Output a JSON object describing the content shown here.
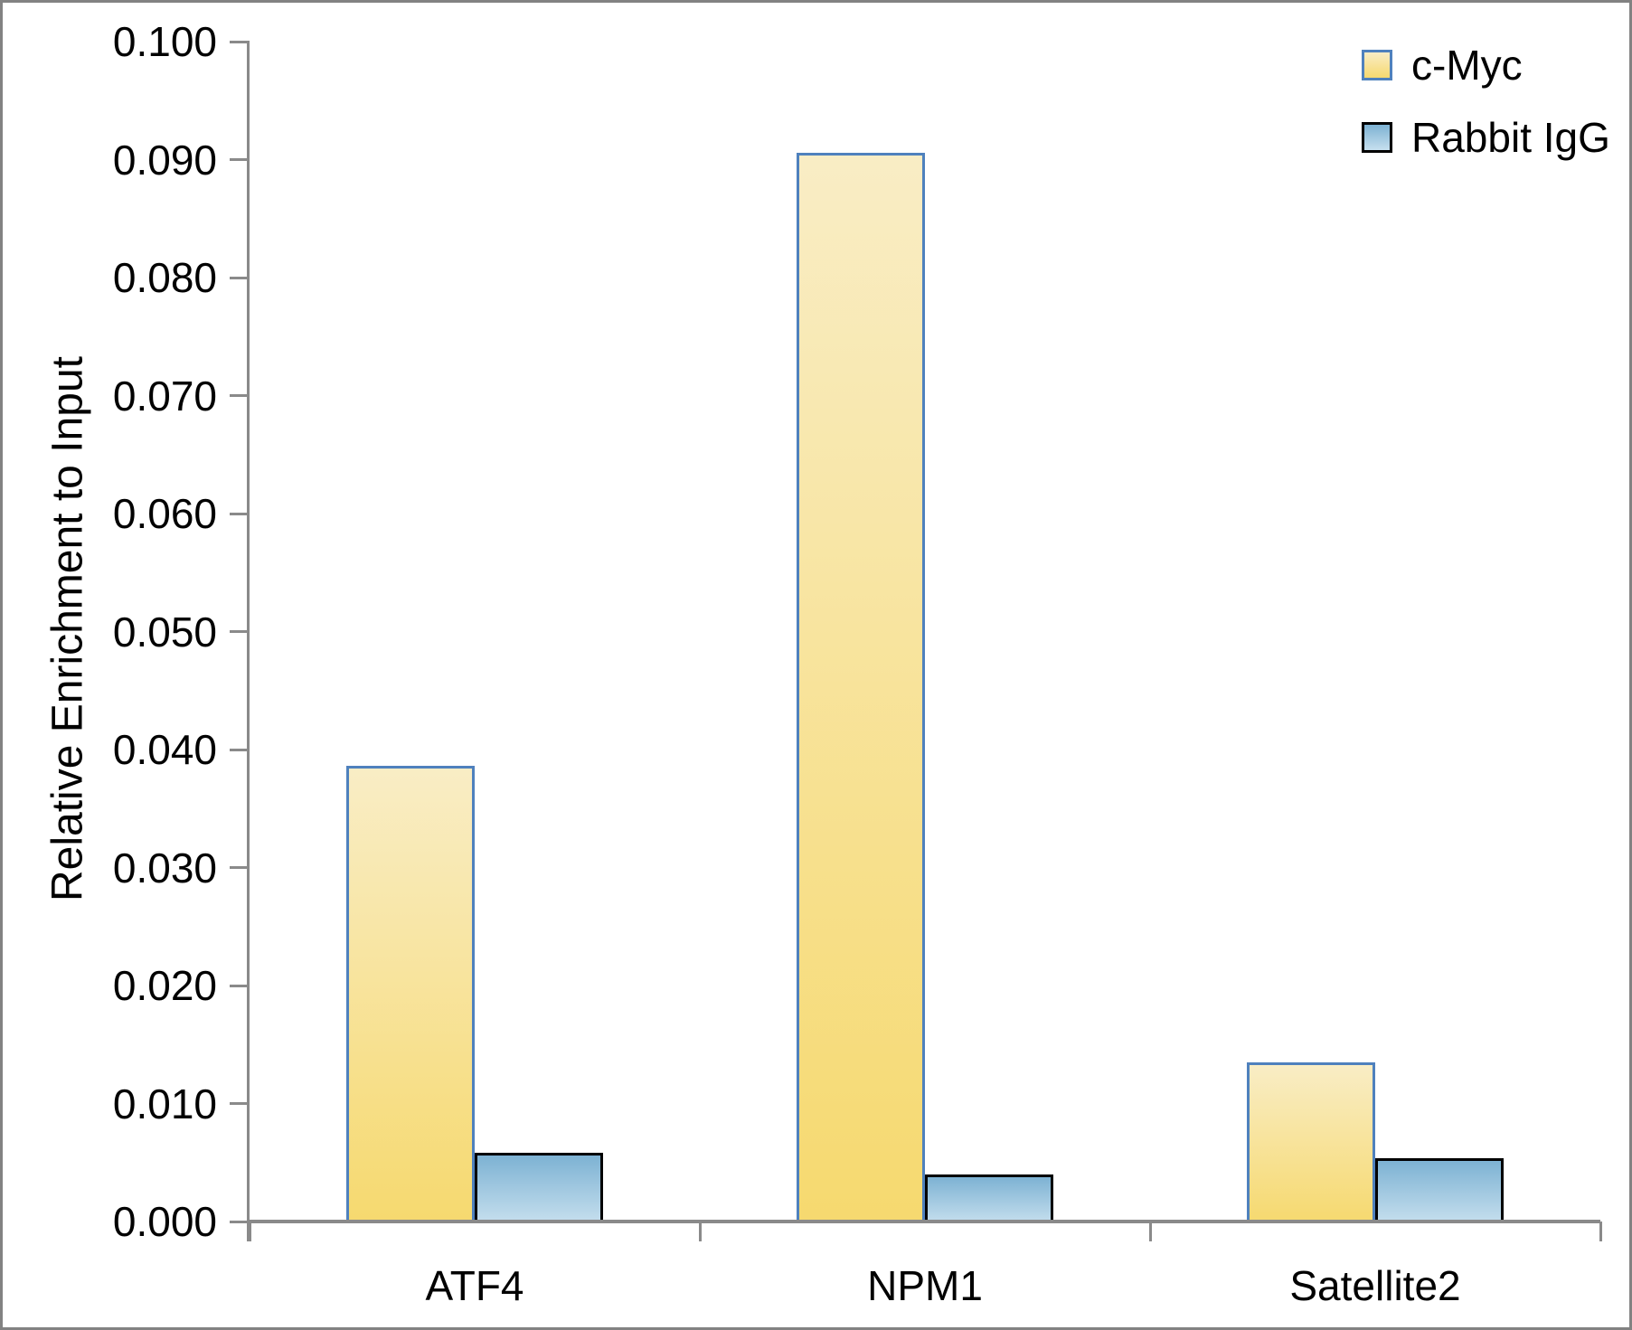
{
  "figure": {
    "background_color": "#ffffff",
    "frame_color": "#828282",
    "axis_color": "#8a8a8a",
    "text_color": "#000000"
  },
  "chart_data": {
    "type": "bar",
    "title": "",
    "ylabel": "Relative Enrichment to Input",
    "xlabel": "",
    "categories": [
      "ATF4",
      "NPM1",
      "Satellite2"
    ],
    "series": [
      {
        "name": "c-Myc",
        "values": [
          0.0386,
          0.0906,
          0.0135
        ],
        "fill_top": "#f9edc5",
        "fill_bottom": "#f6d96f",
        "border_color": "#4f81bd"
      },
      {
        "name": "Rabbit IgG",
        "values": [
          0.0058,
          0.004,
          0.0054
        ],
        "fill_top": "#7db2d3",
        "fill_bottom": "#c6dfee",
        "border_color": "#000000"
      }
    ],
    "ylim": [
      0,
      0.1
    ],
    "ytick_step": 0.01,
    "ytick_decimals": 3,
    "ytick_labels": [
      "0.000",
      "0.010",
      "0.020",
      "0.030",
      "0.040",
      "0.050",
      "0.060",
      "0.070",
      "0.080",
      "0.090",
      "0.100"
    ],
    "grid": false,
    "legend_position": "top-right"
  }
}
